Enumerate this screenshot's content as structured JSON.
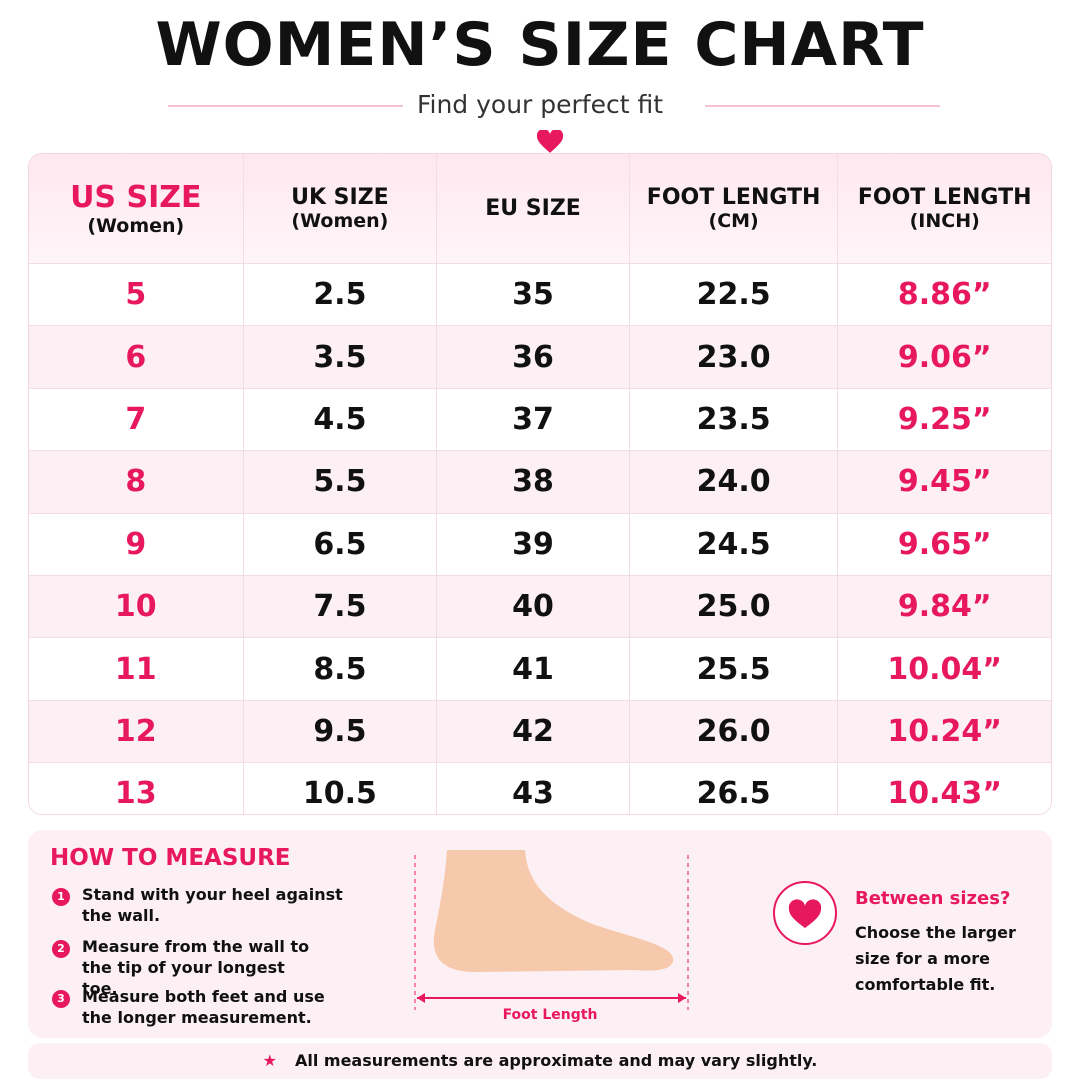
{
  "header": {
    "title": "WOMEN’S SIZE CHART",
    "subtitle": "Find your perfect fit"
  },
  "table": {
    "columns": [
      {
        "label": "US SIZE",
        "sub": "(Women)"
      },
      {
        "label": "UK SIZE",
        "sub": "(Women)"
      },
      {
        "label": "EU SIZE"
      },
      {
        "label": "FOOT LENGTH",
        "sub": "(CM)"
      },
      {
        "label": "FOOT LENGTH",
        "sub": "(INCH)"
      }
    ],
    "rows": [
      [
        "5",
        "2.5",
        "35",
        "22.5",
        "8.86”"
      ],
      [
        "6",
        "3.5",
        "36",
        "23.0",
        "9.06”"
      ],
      [
        "7",
        "4.5",
        "37",
        "23.5",
        "9.25”"
      ],
      [
        "8",
        "5.5",
        "38",
        "24.0",
        "9.45”"
      ],
      [
        "9",
        "6.5",
        "39",
        "24.5",
        "9.65”"
      ],
      [
        "10",
        "7.5",
        "40",
        "25.0",
        "9.84”"
      ],
      [
        "11",
        "8.5",
        "41",
        "25.5",
        "10.04”"
      ],
      [
        "12",
        "9.5",
        "42",
        "26.0",
        "10.24”"
      ],
      [
        "13",
        "10.5",
        "43",
        "26.5",
        "10.43”"
      ]
    ]
  },
  "how_to": {
    "title": "HOW TO MEASURE",
    "steps": [
      {
        "number": "1",
        "text": "Stand with your heel against the wall."
      },
      {
        "number": "2",
        "text": "Measure from the wall to the tip of your longest toe."
      },
      {
        "number": "3",
        "text": "Measure both feet and use the longer measurement."
      }
    ]
  },
  "diagram_label": "Foot Length",
  "tip": {
    "title": "Between sizes?",
    "text": "Choose the larger size for a more comfortable fit."
  },
  "footer": "All measurements are approximate and may vary slightly."
}
